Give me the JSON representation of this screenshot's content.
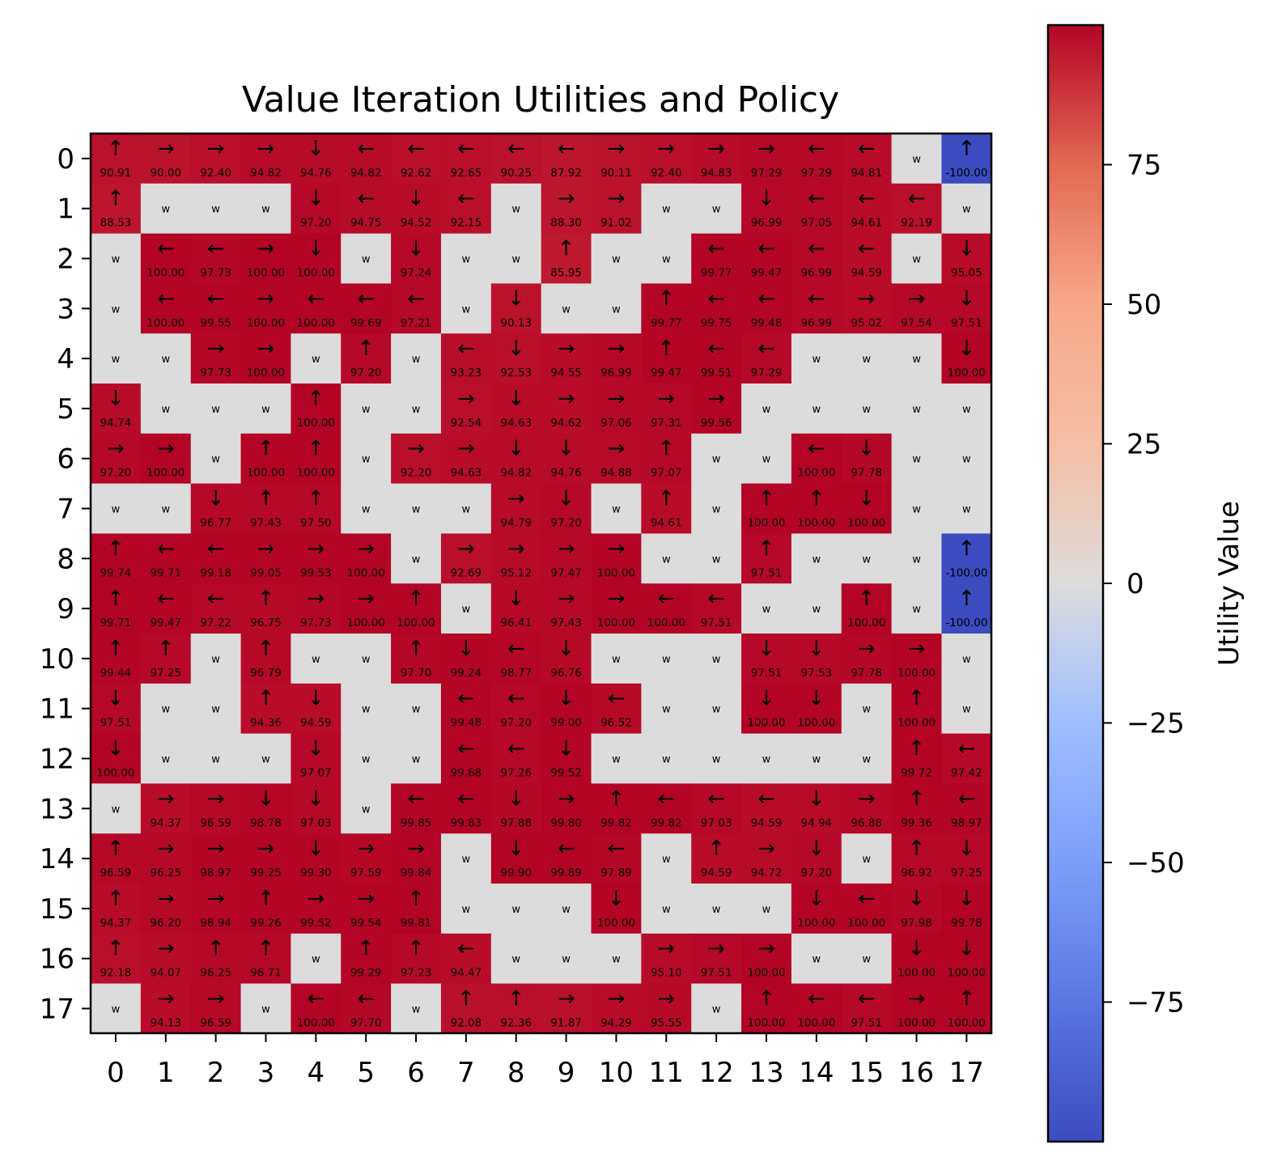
{
  "chart_data": {
    "type": "heatmap",
    "title": "Value Iteration Utilities and Policy",
    "colorbar_label": "Utility Value",
    "colorbar_ticks": [
      -75,
      -50,
      -25,
      0,
      25,
      50,
      75
    ],
    "color_range": [
      -100,
      100
    ],
    "colormap": "coolwarm",
    "wall_color": "#dddcdc",
    "wall_label": "W",
    "rows": 18,
    "cols": 18,
    "x_ticks": [
      0,
      1,
      2,
      3,
      4,
      5,
      6,
      7,
      8,
      9,
      10,
      11,
      12,
      13,
      14,
      15,
      16,
      17
    ],
    "y_ticks": [
      0,
      1,
      2,
      3,
      4,
      5,
      6,
      7,
      8,
      9,
      10,
      11,
      12,
      13,
      14,
      15,
      16,
      17
    ],
    "cells": [
      [
        "↑ 90.91",
        "→ 90.00",
        "→ 92.40",
        "→ 94.82",
        "↓ 94.76",
        "← 94.82",
        "← 92.62",
        "← 92.65",
        "← 90.25",
        "← 87.92",
        "→ 90.11",
        "→ 92.40",
        "→ 94.83",
        "→ 97.29",
        "← 97.29",
        "← 94.81",
        "W",
        "↑ -100.00"
      ],
      [
        "↑ 88.53",
        "W",
        "W",
        "W",
        "↓ 97.20",
        "← 94.75",
        "↓ 94.52",
        "← 92.15",
        "W",
        "→ 88.30",
        "→ 91.02",
        "W",
        "W",
        "↓ 96.99",
        "← 97.05",
        "← 94.61",
        "← 92.19",
        "W"
      ],
      [
        "W",
        "← 100.00",
        "← 97.73",
        "→ 100.00",
        "↓ 100.00",
        "W",
        "↓ 97.24",
        "W",
        "W",
        "↑ 85.95",
        "W",
        "W",
        "← 99.77",
        "← 99.47",
        "← 96.99",
        "← 94.59",
        "W",
        "↓ 95.05"
      ],
      [
        "W",
        "← 100.00",
        "← 99.55",
        "→ 100.00",
        "← 100.00",
        "← 99.69",
        "← 97.21",
        "W",
        "↓ 90.13",
        "W",
        "W",
        "↑ 99.77",
        "← 99.75",
        "← 99.48",
        "← 96.99",
        "→ 95.02",
        "→ 97.54",
        "↓ 97.51"
      ],
      [
        "W",
        "W",
        "→ 97.73",
        "→ 100.00",
        "W",
        "↑ 97.20",
        "W",
        "← 93.23",
        "↓ 92.53",
        "→ 94.55",
        "→ 96.99",
        "↑ 99.47",
        "← 99.51",
        "← 97.29",
        "W",
        "W",
        "W",
        "↓ 100.00"
      ],
      [
        "↓ 94.74",
        "W",
        "W",
        "W",
        "↑ 100.00",
        "W",
        "W",
        "→ 92.54",
        "↓ 94.63",
        "→ 94.62",
        "→ 97.06",
        "→ 97.31",
        "→ 99.56",
        "W",
        "W",
        "W",
        "W",
        "W"
      ],
      [
        "→ 97.20",
        "→ 100.00",
        "W",
        "↑ 100.00",
        "↑ 100.00",
        "W",
        "→ 92.20",
        "→ 94.63",
        "↓ 94.82",
        "↓ 94.76",
        "→ 94.88",
        "↑ 97.07",
        "W",
        "W",
        "← 100.00",
        "↓ 97.78",
        "W",
        "W"
      ],
      [
        "W",
        "W",
        "↓ 96.77",
        "↑ 97.43",
        "↑ 97.50",
        "W",
        "W",
        "W",
        "→ 94.79",
        "↓ 97.20",
        "W",
        "↑ 94.61",
        "W",
        "↑ 100.00",
        "↑ 100.00",
        "↓ 100.00",
        "W",
        "W"
      ],
      [
        "↑ 99.74",
        "← 99.71",
        "← 99.18",
        "→ 99.05",
        "→ 99.53",
        "→ 100.00",
        "W",
        "→ 92.69",
        "→ 95.12",
        "→ 97.47",
        "→ 100.00",
        "W",
        "W",
        "↑ 97.51",
        "W",
        "W",
        "W",
        "↑ -100.00"
      ],
      [
        "↑ 99.71",
        "← 99.47",
        "← 97.22",
        "↑ 96.75",
        "→ 97.73",
        "→ 100.00",
        "↑ 100.00",
        "W",
        "↓ 96.41",
        "→ 97.43",
        "→ 100.00",
        "← 100.00",
        "← 97.51",
        "W",
        "W",
        "↑ 100.00",
        "W",
        "↑ -100.00"
      ],
      [
        "↑ 99.44",
        "↑ 97.25",
        "W",
        "↑ 96.79",
        "W",
        "W",
        "↑ 97.70",
        "↓ 99.24",
        "← 98.77",
        "↓ 96.76",
        "W",
        "W",
        "W",
        "↓ 97.51",
        "↓ 97.53",
        "→ 97.78",
        "→ 100.00",
        "W"
      ],
      [
        "↓ 97.51",
        "W",
        "W",
        "↑ 94.36",
        "↓ 94.59",
        "W",
        "W",
        "← 99.48",
        "← 97.20",
        "↓ 99.00",
        "← 96.52",
        "W",
        "W",
        "↓ 100.00",
        "↓ 100.00",
        "W",
        "↑ 100.00",
        "W"
      ],
      [
        "↓ 100.00",
        "W",
        "W",
        "W",
        "↓ 97.07",
        "W",
        "W",
        "← 99.68",
        "← 97.26",
        "↓ 99.52",
        "W",
        "W",
        "W",
        "W",
        "W",
        "W",
        "↑ 99.72",
        "← 97.42"
      ],
      [
        "W",
        "→ 94.37",
        "→ 96.59",
        "↓ 98.78",
        "↓ 97.03",
        "W",
        "← 99.85",
        "← 99.83",
        "↓ 97.88",
        "→ 99.80",
        "↑ 99.82",
        "← 99.82",
        "← 97.03",
        "← 94.59",
        "↓ 94.94",
        "→ 96.88",
        "↑ 99.36",
        "← 98.97"
      ],
      [
        "↑ 96.59",
        "→ 96.25",
        "→ 98.97",
        "→ 99.25",
        "↓ 99.30",
        "→ 97.59",
        "→ 99.84",
        "W",
        "↓ 99.90",
        "← 99.89",
        "← 97.89",
        "W",
        "↑ 94.59",
        "→ 94.72",
        "↓ 97.20",
        "W",
        "↑ 96.92",
        "↓ 97.25"
      ],
      [
        "↑ 94.37",
        "→ 96.20",
        "→ 98.94",
        "↑ 99.26",
        "→ 99.52",
        "→ 99.54",
        "↑ 99.81",
        "W",
        "W",
        "W",
        "↓ 100.00",
        "W",
        "W",
        "W",
        "↓ 100.00",
        "← 100.00",
        "↓ 97.98",
        "↓ 99.78"
      ],
      [
        "↑ 92.18",
        "→ 94.07",
        "↑ 96.25",
        "↑ 96.71",
        "W",
        "↑ 99.29",
        "↑ 97.23",
        "← 94.47",
        "W",
        "W",
        "W",
        "→ 95.10",
        "→ 97.51",
        "→ 100.00",
        "W",
        "W",
        "↓ 100.00",
        "↓ 100.00"
      ],
      [
        "W",
        "→ 94.13",
        "→ 96.59",
        "W",
        "← 100.00",
        "← 97.70",
        "W",
        "↑ 92.08",
        "↑ 92.36",
        "→ 91.87",
        "→ 94.29",
        "→ 95.55",
        "W",
        "↑ 100.00",
        "← 100.00",
        "← 97.51",
        "→ 100.00",
        "↑ 100.00"
      ]
    ]
  }
}
